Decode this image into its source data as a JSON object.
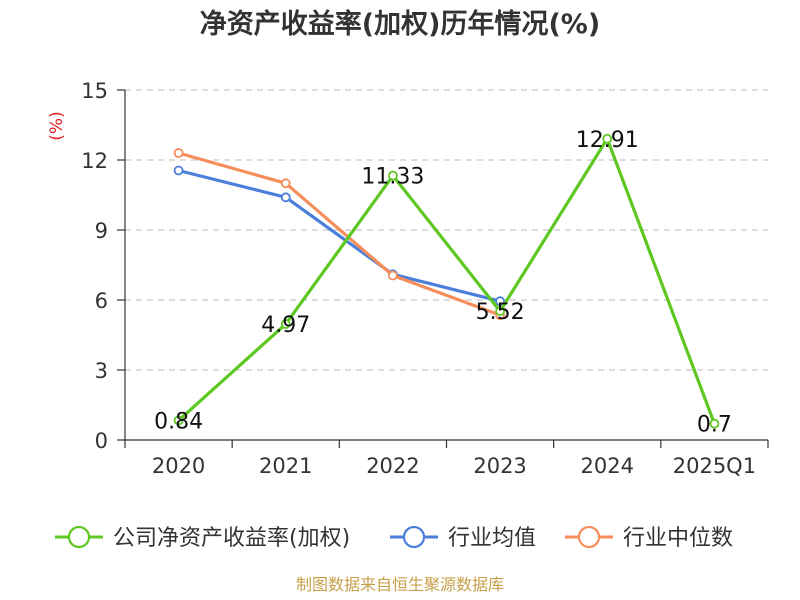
{
  "chart_data": {
    "type": "line",
    "title": "净资产收益率(加权)历年情况(%)",
    "ylabel": "(%)",
    "xlabel": "",
    "categories": [
      "2020",
      "2021",
      "2022",
      "2023",
      "2024",
      "2025Q1"
    ],
    "ylim": [
      0,
      15
    ],
    "yticks": [
      0,
      3,
      6,
      9,
      12,
      15
    ],
    "grid": true,
    "legend_position": "bottom",
    "series": [
      {
        "name": "公司净资产收益率(加权)",
        "color": "#5ec722",
        "values": [
          0.84,
          4.97,
          11.33,
          5.52,
          12.91,
          0.7
        ],
        "labels": [
          "0.84",
          "4.97",
          "11.33",
          "5.52",
          "12.91",
          "0.7"
        ],
        "show_labels": true
      },
      {
        "name": "行业均值",
        "color": "#4a7fdb",
        "values": [
          11.55,
          10.4,
          7.1,
          5.95,
          null,
          null
        ],
        "show_labels": false
      },
      {
        "name": "行业中位数",
        "color": "#f68e5c",
        "values": [
          12.3,
          11.0,
          7.05,
          5.35,
          null,
          null
        ],
        "show_labels": false
      }
    ]
  },
  "source": "制图数据来自恒生聚源数据库"
}
